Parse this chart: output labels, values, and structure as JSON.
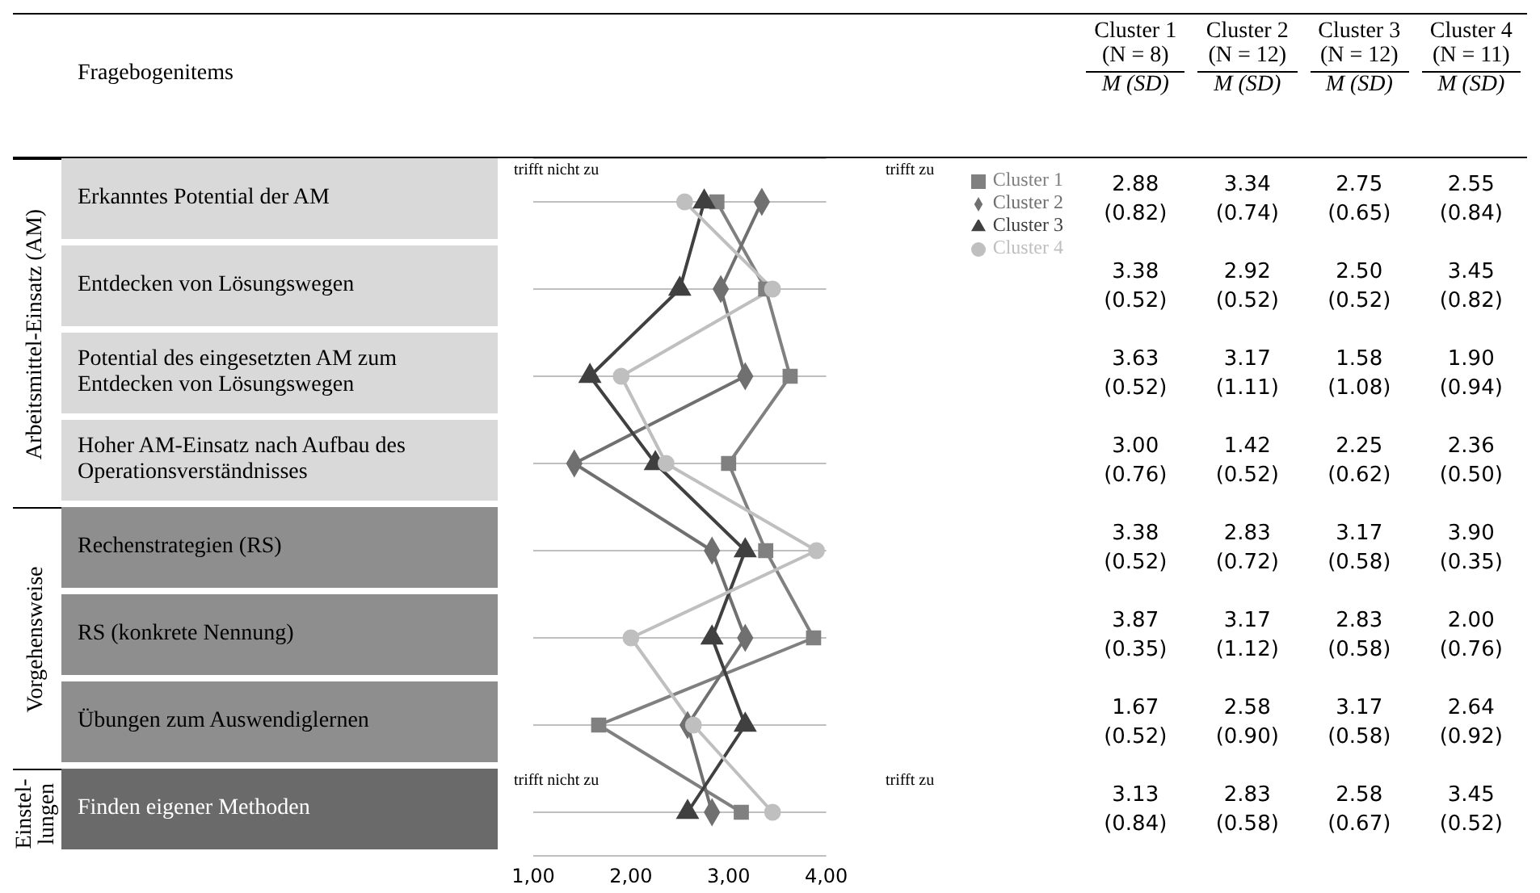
{
  "chart_data": {
    "type": "line",
    "orientation": "horizontal",
    "categories": [
      "Erkanntes Potential der AM",
      "Entdecken von Lösungswegen",
      "Potential des eingesetzten AM zum Entdecken von Lösungswegen",
      "Hoher AM-Einsatz nach Aufbau des Operationsverständnisses",
      "Rechenstrategien (RS)",
      "RS (konkrete Nennung)",
      "Übungen zum Auswendiglernen",
      "Finden eigener Methoden"
    ],
    "series": [
      {
        "name": "Cluster 1",
        "color": "#808080",
        "marker": "square",
        "values": [
          2.88,
          3.38,
          3.63,
          3.0,
          3.38,
          3.87,
          1.67,
          3.13
        ],
        "value_labels": [
          "2.88 (0.82)",
          "3.38 (0.52)",
          "3.63 (0.52)",
          "3.00 (0.76)",
          "3.38 (0.52)",
          "3.87 (0.35)",
          "1.67 (0.52)",
          "3.13 (0.84)"
        ]
      },
      {
        "name": "Cluster 2",
        "color": "#707070",
        "marker": "diamond",
        "values": [
          3.34,
          2.92,
          3.17,
          1.42,
          2.83,
          3.17,
          2.58,
          2.83
        ],
        "value_labels": [
          "3.34 (0.74)",
          "2.92 (0.52)",
          "3.17 (1.11)",
          "1.42 (0.52)",
          "2.83 (0.72)",
          "3.17 (1.12)",
          "2.58 (0.90)",
          "2.83 (0.58)"
        ]
      },
      {
        "name": "Cluster 3",
        "color": "#404040",
        "marker": "triangle",
        "values": [
          2.75,
          2.5,
          1.58,
          2.25,
          3.17,
          2.83,
          3.17,
          2.58
        ],
        "value_labels": [
          "2.75 (0.65)",
          "2.50 (0.52)",
          "1.58 (1.08)",
          "2.25 (0.62)",
          "3.17 (0.58)",
          "2.83 (0.58)",
          "3.17 (0.58)",
          "2.58 (0.67)"
        ]
      },
      {
        "name": "Cluster 4",
        "color": "#bfbfbf",
        "marker": "circle",
        "values": [
          2.55,
          3.45,
          1.9,
          2.36,
          3.9,
          2.0,
          2.64,
          3.45
        ],
        "value_labels": [
          "2.55 (0.84)",
          "3.45 (0.82)",
          "1.90 (0.94)",
          "2.36 (0.50)",
          "3.90 (0.35)",
          "2.00 (0.76)",
          "2.64 (0.92)",
          "3.45 (0.52)"
        ]
      }
    ],
    "xlim": [
      1,
      4
    ],
    "xticks": [
      {
        "value": 1,
        "label": "1,00"
      },
      {
        "value": 2,
        "label": "2,00"
      },
      {
        "value": 3,
        "label": "3,00"
      },
      {
        "value": 4,
        "label": "4,00"
      }
    ],
    "grid": "y",
    "legend": "top right",
    "annotations": [
      "Fragebogenitems",
      "trifft nicht zu",
      "trifft zu",
      "trifft nicht zu",
      "trifft zu",
      "Arbeitsmittel-Einsatz (AM)",
      "Vorgehensweise",
      "Einstel-lungen",
      "(N = 8)",
      "(N = 12)",
      "(N = 12)",
      "(N = 11)",
      "M (SD)",
      "M (SD)",
      "M (SD)",
      "M (SD)"
    ]
  }
}
